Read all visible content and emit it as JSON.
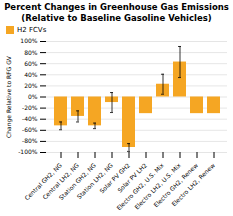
{
  "chart_data": {
    "type": "bar",
    "title": "Percent Changes in Greenhouse Gas Emissions\n(Relative to Baseline Gasoline Vehicles)",
    "ylabel": "Change Relative to RFG GV",
    "categories": [
      "Central GH2, NG",
      "Central LH2, NG",
      "Station GH2, NG",
      "Station LH2, NG",
      "Solar PV GH2",
      "Solar PV LH2",
      "Electro GH2, U.S. Mix",
      "Electro LH2, U.S. Mix",
      "Electro GH2, Renew",
      "Electro LH2, Renew"
    ],
    "series": [
      {
        "name": "H2 FCVs",
        "color": "#F5A623",
        "values": [
          -52,
          -35,
          -52,
          -10,
          -91,
          -30,
          23,
          63,
          -30,
          -30
        ],
        "error_low": [
          7,
          10,
          5,
          18,
          7,
          0,
          18,
          28,
          0,
          0
        ],
        "error_high": [
          7,
          10,
          5,
          18,
          7,
          0,
          18,
          28,
          0,
          0
        ]
      }
    ],
    "ylim": [
      -100,
      100
    ],
    "yticks": [
      {
        "value": -100,
        "label": "-100%"
      },
      {
        "value": -80,
        "label": "-80%"
      },
      {
        "value": -60,
        "label": "-60%"
      },
      {
        "value": -40,
        "label": "-40%"
      },
      {
        "value": -20,
        "label": "-20%"
      },
      {
        "value": 0,
        "label": "0%"
      },
      {
        "value": 20,
        "label": "20%"
      },
      {
        "value": 40,
        "label": "40%"
      },
      {
        "value": 60,
        "label": "60%"
      },
      {
        "value": 80,
        "label": "80%"
      },
      {
        "value": 100,
        "label": "100%"
      }
    ],
    "grid": true,
    "legend": "upper left"
  }
}
